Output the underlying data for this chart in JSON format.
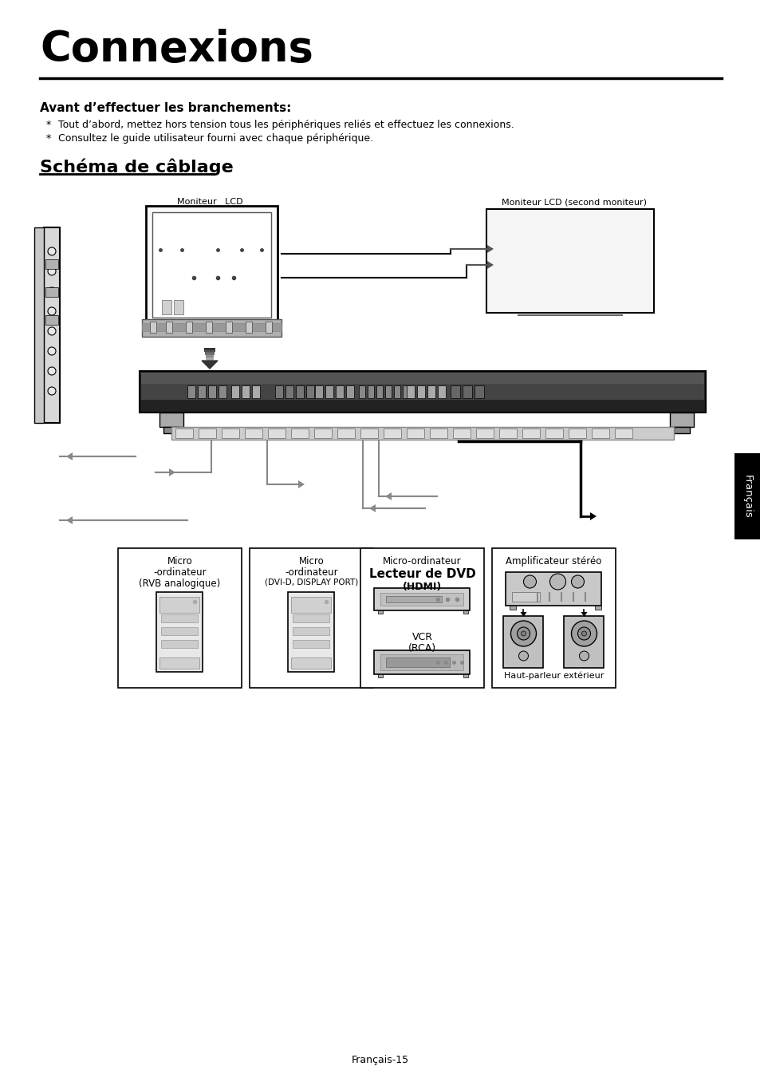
{
  "title": "Connexions",
  "subtitle_bold": "Avant d’effectuer les branchements:",
  "bullet1": "Tout d’abord, mettez hors tension tous les périphériques reliés et effectuez les connexions.",
  "bullet2": "Consultez le guide utilisateur fourni avec chaque périphérique.",
  "section2": "Schéma de câblage",
  "label_lcd": "Moniteur   LCD",
  "label_lcd2": "Moniteur LCD (second moniteur)",
  "label_micro1_line1": "Micro",
  "label_micro1_line2": "-ordinateur",
  "label_micro1_line3": "(RVB analogique)",
  "label_micro2_line1": "Micro",
  "label_micro2_line2": "-ordinateur",
  "label_micro2_line3": "(DVI-D, DISPLAY PORT)",
  "label_dvd_line1": "Micro-ordinateur",
  "label_dvd_line2": "Lecteur de DVD",
  "label_dvd_line3": "(HDMI)",
  "label_vcr_line1": "VCR",
  "label_vcr_line2": "(RCA)",
  "label_amp": "Amplificateur stéréo",
  "label_speaker": "Haut-parleur extérieur",
  "label_francais": "Français",
  "footer": "Français-15",
  "bg_color": "#ffffff",
  "text_color": "#000000"
}
